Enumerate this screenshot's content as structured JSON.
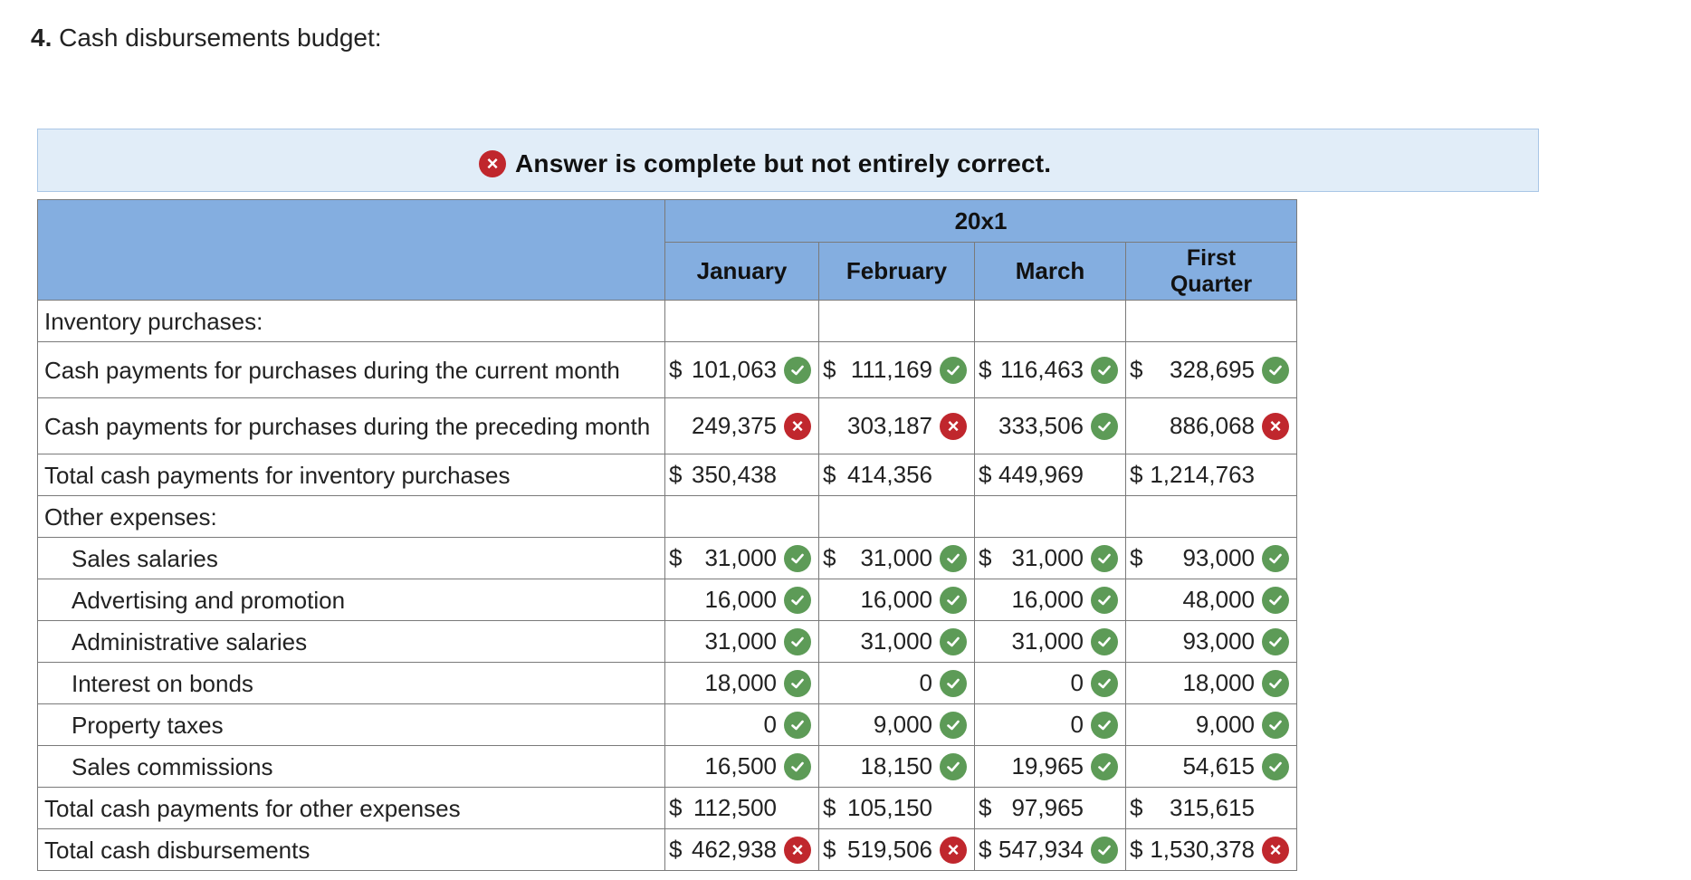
{
  "heading": {
    "number": "4.",
    "text": "Cash disbursements budget:"
  },
  "banner": {
    "text": "Answer is complete but not entirely correct.",
    "icon": "error-x-icon"
  },
  "table": {
    "year": "20x1",
    "columns": [
      "January",
      "February",
      "March",
      "First Quarter"
    ],
    "rows": [
      {
        "label": "Inventory purchases:",
        "indent": false,
        "cells": []
      },
      {
        "label": "Cash payments for purchases during the current month",
        "indent": false,
        "cells": [
          {
            "dollar": "$",
            "value": "101,063",
            "mark": "check"
          },
          {
            "dollar": "$",
            "value": "111,169",
            "mark": "check"
          },
          {
            "dollar": "$",
            "value": "116,463",
            "mark": "check"
          },
          {
            "dollar": "$",
            "value": "328,695",
            "mark": "check"
          }
        ]
      },
      {
        "label": "Cash payments for purchases during the preceding month",
        "indent": false,
        "cells": [
          {
            "dollar": "",
            "value": "249,375",
            "mark": "x"
          },
          {
            "dollar": "",
            "value": "303,187",
            "mark": "x"
          },
          {
            "dollar": "",
            "value": "333,506",
            "mark": "check"
          },
          {
            "dollar": "",
            "value": "886,068",
            "mark": "x"
          }
        ]
      },
      {
        "label": "Total cash payments for inventory purchases",
        "indent": false,
        "cells": [
          {
            "dollar": "$",
            "value": "350,438",
            "mark": "none"
          },
          {
            "dollar": "$",
            "value": "414,356",
            "mark": "none"
          },
          {
            "dollar": "$",
            "value": "449,969",
            "mark": "none"
          },
          {
            "dollar": "$",
            "value": "1,214,763",
            "mark": "none"
          }
        ]
      },
      {
        "label": "Other expenses:",
        "indent": false,
        "cells": []
      },
      {
        "label": "Sales salaries",
        "indent": true,
        "cells": [
          {
            "dollar": "$",
            "value": "31,000",
            "mark": "check"
          },
          {
            "dollar": "$",
            "value": "31,000",
            "mark": "check"
          },
          {
            "dollar": "$",
            "value": "31,000",
            "mark": "check"
          },
          {
            "dollar": "$",
            "value": "93,000",
            "mark": "check"
          }
        ]
      },
      {
        "label": "Advertising and promotion",
        "indent": true,
        "cells": [
          {
            "dollar": "",
            "value": "16,000",
            "mark": "check"
          },
          {
            "dollar": "",
            "value": "16,000",
            "mark": "check"
          },
          {
            "dollar": "",
            "value": "16,000",
            "mark": "check"
          },
          {
            "dollar": "",
            "value": "48,000",
            "mark": "check"
          }
        ]
      },
      {
        "label": "Administrative salaries",
        "indent": true,
        "cells": [
          {
            "dollar": "",
            "value": "31,000",
            "mark": "check"
          },
          {
            "dollar": "",
            "value": "31,000",
            "mark": "check"
          },
          {
            "dollar": "",
            "value": "31,000",
            "mark": "check"
          },
          {
            "dollar": "",
            "value": "93,000",
            "mark": "check"
          }
        ]
      },
      {
        "label": "Interest on bonds",
        "indent": true,
        "cells": [
          {
            "dollar": "",
            "value": "18,000",
            "mark": "check"
          },
          {
            "dollar": "",
            "value": "0",
            "mark": "check"
          },
          {
            "dollar": "",
            "value": "0",
            "mark": "check"
          },
          {
            "dollar": "",
            "value": "18,000",
            "mark": "check"
          }
        ]
      },
      {
        "label": "Property taxes",
        "indent": true,
        "cells": [
          {
            "dollar": "",
            "value": "0",
            "mark": "check"
          },
          {
            "dollar": "",
            "value": "9,000",
            "mark": "check"
          },
          {
            "dollar": "",
            "value": "0",
            "mark": "check"
          },
          {
            "dollar": "",
            "value": "9,000",
            "mark": "check"
          }
        ]
      },
      {
        "label": "Sales commissions",
        "indent": true,
        "cells": [
          {
            "dollar": "",
            "value": "16,500",
            "mark": "check"
          },
          {
            "dollar": "",
            "value": "18,150",
            "mark": "check"
          },
          {
            "dollar": "",
            "value": "19,965",
            "mark": "check"
          },
          {
            "dollar": "",
            "value": "54,615",
            "mark": "check"
          }
        ]
      },
      {
        "label": "Total cash payments for other expenses",
        "indent": false,
        "cells": [
          {
            "dollar": "$",
            "value": "112,500",
            "mark": "none"
          },
          {
            "dollar": "$",
            "value": "105,150",
            "mark": "none"
          },
          {
            "dollar": "$",
            "value": "97,965",
            "mark": "none"
          },
          {
            "dollar": "$",
            "value": "315,615",
            "mark": "none"
          }
        ]
      },
      {
        "label": "Total cash disbursements",
        "indent": false,
        "cells": [
          {
            "dollar": "$",
            "value": "462,938",
            "mark": "x"
          },
          {
            "dollar": "$",
            "value": "519,506",
            "mark": "x"
          },
          {
            "dollar": "$",
            "value": "547,934",
            "mark": "check"
          },
          {
            "dollar": "$",
            "value": "1,530,378",
            "mark": "x"
          }
        ]
      }
    ]
  },
  "colors": {
    "header_bg": "#84aee0",
    "banner_bg": "#e1edf8",
    "check": "#5d9b57",
    "error": "#c0272d"
  }
}
